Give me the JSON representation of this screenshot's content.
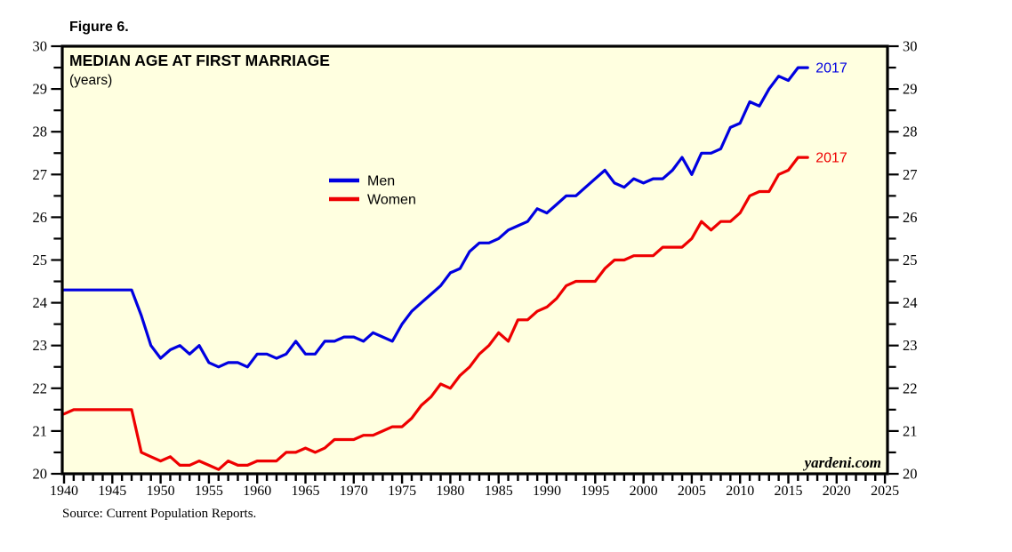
{
  "figure": {
    "label": "Figure 6."
  },
  "chart": {
    "title": "MEDIAN AGE AT FIRST MARRIAGE",
    "subtitle": "(years)",
    "watermark": "yardeni.com",
    "source": "Source: Current Population Reports.",
    "legend": [
      {
        "label": "Men",
        "color": "#0000e0"
      },
      {
        "label": "Women",
        "color": "#ee0000"
      }
    ],
    "end_labels": [
      {
        "text": "2017",
        "series": "Men",
        "color": "#0000e0"
      },
      {
        "text": "2017",
        "series": "Women",
        "color": "#ee0000"
      }
    ],
    "colors": {
      "plot_background": "#ffffe0",
      "frame": "#000000",
      "men_line": "#0000e0",
      "women_line": "#ee0000",
      "text": "#000000"
    }
  },
  "chart_data": {
    "type": "line",
    "title": "MEDIAN AGE AT FIRST MARRIAGE",
    "ylabel": "years",
    "xlim": [
      1939.8,
      2025.5
    ],
    "ylim": [
      20,
      30
    ],
    "grid": false,
    "legend_position": "center-left",
    "axis_labels": "both-sides",
    "x_major_ticks": [
      1940,
      1945,
      1950,
      1955,
      1960,
      1965,
      1970,
      1975,
      1980,
      1985,
      1990,
      1995,
      2000,
      2005,
      2010,
      2015,
      2020,
      2025
    ],
    "x_minor_step": 1,
    "y_major_ticks": [
      20,
      21,
      22,
      23,
      24,
      25,
      26,
      27,
      28,
      29,
      30
    ],
    "y_minor_step": 0.5,
    "x_start": 1940,
    "x_end": 2017,
    "series": [
      {
        "name": "Men",
        "color": "#0000e0",
        "values": [
          24.3,
          24.3,
          24.3,
          24.3,
          24.3,
          24.3,
          24.3,
          24.3,
          23.7,
          23.0,
          22.7,
          22.9,
          23.0,
          22.8,
          23.0,
          22.6,
          22.5,
          22.6,
          22.6,
          22.5,
          22.8,
          22.8,
          22.7,
          22.8,
          23.1,
          22.8,
          22.8,
          23.1,
          23.1,
          23.2,
          23.2,
          23.1,
          23.3,
          23.2,
          23.1,
          23.5,
          23.8,
          24.0,
          24.2,
          24.4,
          24.7,
          24.8,
          25.2,
          25.4,
          25.4,
          25.5,
          25.7,
          25.8,
          25.9,
          26.2,
          26.1,
          26.3,
          26.5,
          26.5,
          26.7,
          26.9,
          27.1,
          26.8,
          26.7,
          26.9,
          26.8,
          26.9,
          26.9,
          27.1,
          27.4,
          27.0,
          27.5,
          27.5,
          27.6,
          28.1,
          28.2,
          28.7,
          28.6,
          29.0,
          29.3,
          29.2,
          29.5,
          29.5
        ]
      },
      {
        "name": "Women",
        "color": "#ee0000",
        "values": [
          21.4,
          21.5,
          21.5,
          21.5,
          21.5,
          21.5,
          21.5,
          21.5,
          20.5,
          20.4,
          20.3,
          20.4,
          20.2,
          20.2,
          20.3,
          20.2,
          20.1,
          20.3,
          20.2,
          20.2,
          20.3,
          20.3,
          20.3,
          20.5,
          20.5,
          20.6,
          20.5,
          20.6,
          20.8,
          20.8,
          20.8,
          20.9,
          20.9,
          21.0,
          21.1,
          21.1,
          21.3,
          21.6,
          21.8,
          22.1,
          22.0,
          22.3,
          22.5,
          22.8,
          23.0,
          23.3,
          23.1,
          23.6,
          23.6,
          23.8,
          23.9,
          24.1,
          24.4,
          24.5,
          24.5,
          24.5,
          24.8,
          25.0,
          25.0,
          25.1,
          25.1,
          25.1,
          25.3,
          25.3,
          25.3,
          25.5,
          25.9,
          25.7,
          25.9,
          25.9,
          26.1,
          26.5,
          26.6,
          26.6,
          27.0,
          27.1,
          27.4,
          27.4
        ]
      }
    ]
  }
}
